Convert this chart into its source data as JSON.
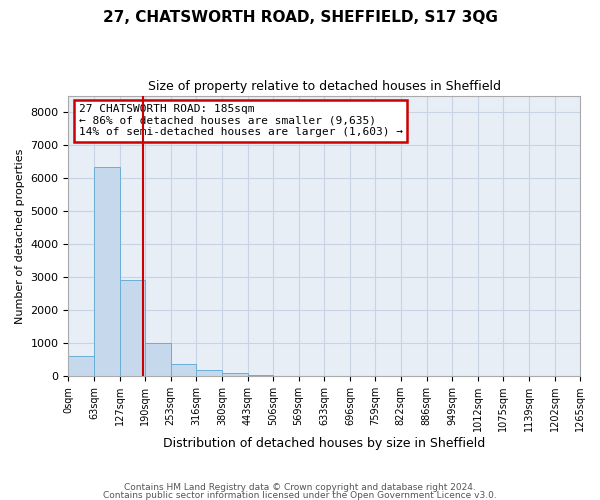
{
  "title": "27, CHATSWORTH ROAD, SHEFFIELD, S17 3QG",
  "subtitle": "Size of property relative to detached houses in Sheffield",
  "xlabel": "Distribution of detached houses by size in Sheffield",
  "ylabel": "Number of detached properties",
  "bar_values": [
    600,
    6350,
    2900,
    1000,
    380,
    175,
    100,
    50,
    0,
    0,
    0,
    0,
    0,
    0,
    0,
    0,
    0,
    0,
    0,
    0
  ],
  "bin_edges": [
    0,
    63,
    127,
    190,
    253,
    316,
    380,
    443,
    506,
    569,
    633,
    696,
    759,
    822,
    886,
    949,
    1012,
    1075,
    1139,
    1202,
    1265
  ],
  "x_tick_labels": [
    "0sqm",
    "63sqm",
    "127sqm",
    "190sqm",
    "253sqm",
    "316sqm",
    "380sqm",
    "443sqm",
    "506sqm",
    "569sqm",
    "633sqm",
    "696sqm",
    "759sqm",
    "822sqm",
    "886sqm",
    "949sqm",
    "1012sqm",
    "1075sqm",
    "1139sqm",
    "1202sqm",
    "1265sqm"
  ],
  "property_size": 185,
  "ylim": [
    0,
    8500
  ],
  "yticks": [
    0,
    1000,
    2000,
    3000,
    4000,
    5000,
    6000,
    7000,
    8000
  ],
  "bar_color": "#c6d9ec",
  "bar_edge_color": "#6aaed6",
  "red_line_color": "#cc0000",
  "annotation_text": "27 CHATSWORTH ROAD: 185sqm\n← 86% of detached houses are smaller (9,635)\n14% of semi-detached houses are larger (1,603) →",
  "annotation_box_color": "#cc0000",
  "grid_color": "#c8d4e4",
  "bg_color": "#e8eef6",
  "footer_line1": "Contains HM Land Registry data © Crown copyright and database right 2024.",
  "footer_line2": "Contains public sector information licensed under the Open Government Licence v3.0."
}
